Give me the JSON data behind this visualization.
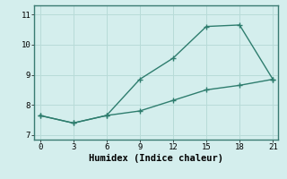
{
  "line1_x": [
    0,
    3,
    6,
    9,
    12,
    15,
    18,
    21
  ],
  "line1_y": [
    7.65,
    7.4,
    7.65,
    8.85,
    9.55,
    10.6,
    10.65,
    8.85
  ],
  "line2_x": [
    0,
    3,
    6,
    9,
    12,
    15,
    18,
    21
  ],
  "line2_y": [
    7.65,
    7.4,
    7.65,
    7.8,
    8.15,
    8.5,
    8.65,
    8.85
  ],
  "line_color": "#2e7d6e",
  "bg_color": "#d4eeed",
  "grid_color": "#b8dbd8",
  "xlabel": "Humidex (Indice chaleur)",
  "xlim": [
    -0.5,
    21.5
  ],
  "ylim": [
    6.85,
    11.3
  ],
  "yticks": [
    7,
    8,
    9,
    10,
    11
  ],
  "xticks": [
    0,
    3,
    6,
    9,
    12,
    15,
    18,
    21
  ],
  "xlabel_fontsize": 7.5,
  "tick_fontsize": 6.5,
  "marker": "+",
  "markersize": 4,
  "linewidth": 1.0
}
